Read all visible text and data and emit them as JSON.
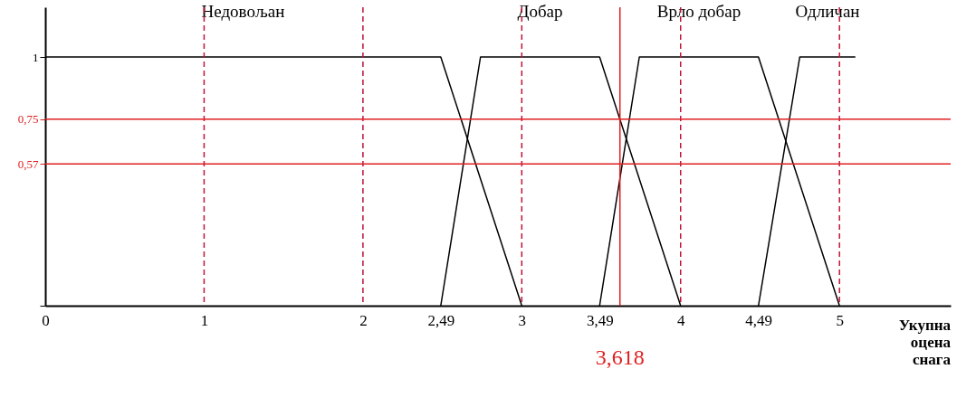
{
  "chart_data": {
    "type": "line",
    "xlabel": "Укупна оцена снага",
    "series": [
      {
        "name": "Недовољан",
        "color": "#000000",
        "x": [
          0,
          2.49,
          3
        ],
        "values": [
          1,
          1,
          0
        ]
      },
      {
        "name": "Добар",
        "color": "#000000",
        "x": [
          2.49,
          2.74,
          3.49,
          4
        ],
        "values": [
          0,
          1,
          1,
          0
        ]
      },
      {
        "name": "Врло добар",
        "color": "#000000",
        "x": [
          3.49,
          3.74,
          4.49,
          5
        ],
        "values": [
          0,
          1,
          1,
          0
        ]
      },
      {
        "name": "Одличан",
        "color": "#000000",
        "x": [
          4.49,
          4.75,
          5.1
        ],
        "values": [
          0,
          1,
          1
        ]
      }
    ],
    "xlim": [
      0,
      5.7
    ],
    "ylim": [
      0,
      1.2
    ],
    "xticks": [
      0,
      1,
      2,
      {
        "value": 2.49,
        "label": "2,49"
      },
      3,
      {
        "value": 3.49,
        "label": "3,49"
      },
      4,
      {
        "value": 4.49,
        "label": "4,49"
      },
      5
    ],
    "yticks": [
      {
        "value": 0,
        "label": null
      },
      {
        "value": 0.57,
        "label": "0,57"
      },
      {
        "value": 0.75,
        "label": "0,75"
      },
      1
    ],
    "ref_lines": [
      {
        "axis": "x",
        "value": 1,
        "color": "#c0143c",
        "line_style": "dashed"
      },
      {
        "axis": "x",
        "value": 2,
        "color": "#c0143c",
        "line_style": "dashed"
      },
      {
        "axis": "x",
        "value": 3,
        "color": "#c0143c",
        "line_style": "dashed"
      },
      {
        "axis": "x",
        "value": 4,
        "color": "#c0143c",
        "line_style": "dashed"
      },
      {
        "axis": "x",
        "value": 5,
        "color": "#c0143c",
        "line_style": "dashed"
      },
      {
        "axis": "y",
        "value": 0.75,
        "color": "#e02020",
        "line_style": "solid"
      },
      {
        "axis": "y",
        "value": 0.57,
        "color": "#e02020",
        "line_style": "solid"
      },
      {
        "axis": "x",
        "value": 3.618,
        "label": "3,618",
        "color": "#e02020",
        "line_style": "solid"
      }
    ],
    "marker": "none",
    "line_style": "solid"
  }
}
